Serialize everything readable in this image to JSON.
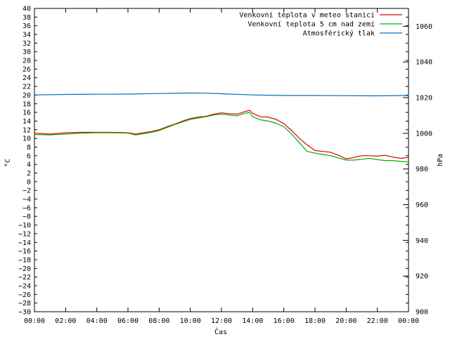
{
  "chart_data": {
    "type": "line",
    "xlabel": "Čas",
    "ylabel": "°C",
    "y2label": "hPa",
    "x_ticks": [
      "00:00",
      "02:00",
      "04:00",
      "06:00",
      "08:00",
      "10:00",
      "12:00",
      "14:00",
      "16:00",
      "18:00",
      "20:00",
      "22:00",
      "00:00"
    ],
    "xlim_hours": [
      0,
      24
    ],
    "ylim": [
      -30,
      40
    ],
    "y_ticks": [
      40,
      38,
      36,
      34,
      32,
      30,
      28,
      26,
      24,
      22,
      20,
      18,
      16,
      14,
      12,
      10,
      8,
      6,
      4,
      2,
      0,
      -2,
      -4,
      -6,
      -8,
      -10,
      -12,
      -14,
      -16,
      -18,
      -20,
      -22,
      -24,
      -26,
      -28,
      -30
    ],
    "y2lim": [
      900,
      1070
    ],
    "y2_ticks": [
      1060,
      1040,
      1020,
      1000,
      980,
      960,
      940,
      920,
      900
    ],
    "grid": false,
    "legend_position": "top-right",
    "series": [
      {
        "name": "Venkovní teplota v meteo stanici",
        "axis": "y",
        "color": "#e00000",
        "x": [
          0,
          1,
          2,
          3,
          4,
          5,
          6,
          6.5,
          7,
          7.5,
          8,
          8.5,
          9,
          9.5,
          10,
          10.5,
          11,
          11.5,
          12,
          12.5,
          13,
          13.5,
          13.8,
          14,
          14.5,
          15,
          15.5,
          16,
          16.5,
          17,
          17.5,
          18,
          18.5,
          19,
          19.5,
          20,
          20.5,
          21,
          21.5,
          22,
          22.5,
          23,
          23.5,
          24
        ],
        "y": [
          11.2,
          11.0,
          11.3,
          11.4,
          11.4,
          11.4,
          11.3,
          11.0,
          11.3,
          11.6,
          12.0,
          12.7,
          13.3,
          14.0,
          14.6,
          14.9,
          15.1,
          15.6,
          15.9,
          15.7,
          15.6,
          16.2,
          16.5,
          15.8,
          15.0,
          14.9,
          14.4,
          13.4,
          11.8,
          10.0,
          8.5,
          7.2,
          7.0,
          6.8,
          6.1,
          5.3,
          5.6,
          6.0,
          6.0,
          5.9,
          6.1,
          5.7,
          5.4,
          5.6
        ]
      },
      {
        "name": "Venkovní teplota 5 cm nad zemí",
        "axis": "y",
        "color": "#00b000",
        "x": [
          0,
          1,
          2,
          3,
          4,
          5,
          6,
          6.5,
          7,
          7.5,
          8,
          8.5,
          9,
          9.5,
          10,
          10.5,
          11,
          11.5,
          12,
          12.5,
          13,
          13.5,
          13.8,
          14,
          14.5,
          15,
          15.5,
          16,
          16.5,
          17,
          17.5,
          18,
          18.5,
          19,
          19.5,
          20,
          20.5,
          21,
          21.5,
          22,
          22.5,
          23,
          23.5,
          24
        ],
        "y": [
          10.9,
          10.8,
          11.0,
          11.2,
          11.3,
          11.3,
          11.2,
          10.8,
          11.1,
          11.4,
          11.8,
          12.5,
          13.2,
          13.8,
          14.4,
          14.7,
          15.0,
          15.4,
          15.6,
          15.4,
          15.2,
          15.8,
          16.0,
          15.0,
          14.3,
          14.0,
          13.5,
          12.7,
          11.0,
          9.0,
          7.0,
          6.6,
          6.3,
          6.0,
          5.5,
          5.0,
          5.0,
          5.2,
          5.4,
          5.1,
          4.9,
          4.9,
          4.7,
          4.6
        ]
      },
      {
        "name": "Atmosférický tlak",
        "axis": "y2",
        "color": "#0070c0",
        "x": [
          0,
          2,
          4,
          6,
          8,
          10,
          11,
          12,
          14,
          16,
          18,
          20,
          22,
          24
        ],
        "y": [
          1021.5,
          1021.8,
          1021.9,
          1022.0,
          1022.3,
          1022.6,
          1022.5,
          1022.2,
          1021.5,
          1021.2,
          1021.2,
          1021.1,
          1021.0,
          1021.2
        ]
      }
    ]
  }
}
